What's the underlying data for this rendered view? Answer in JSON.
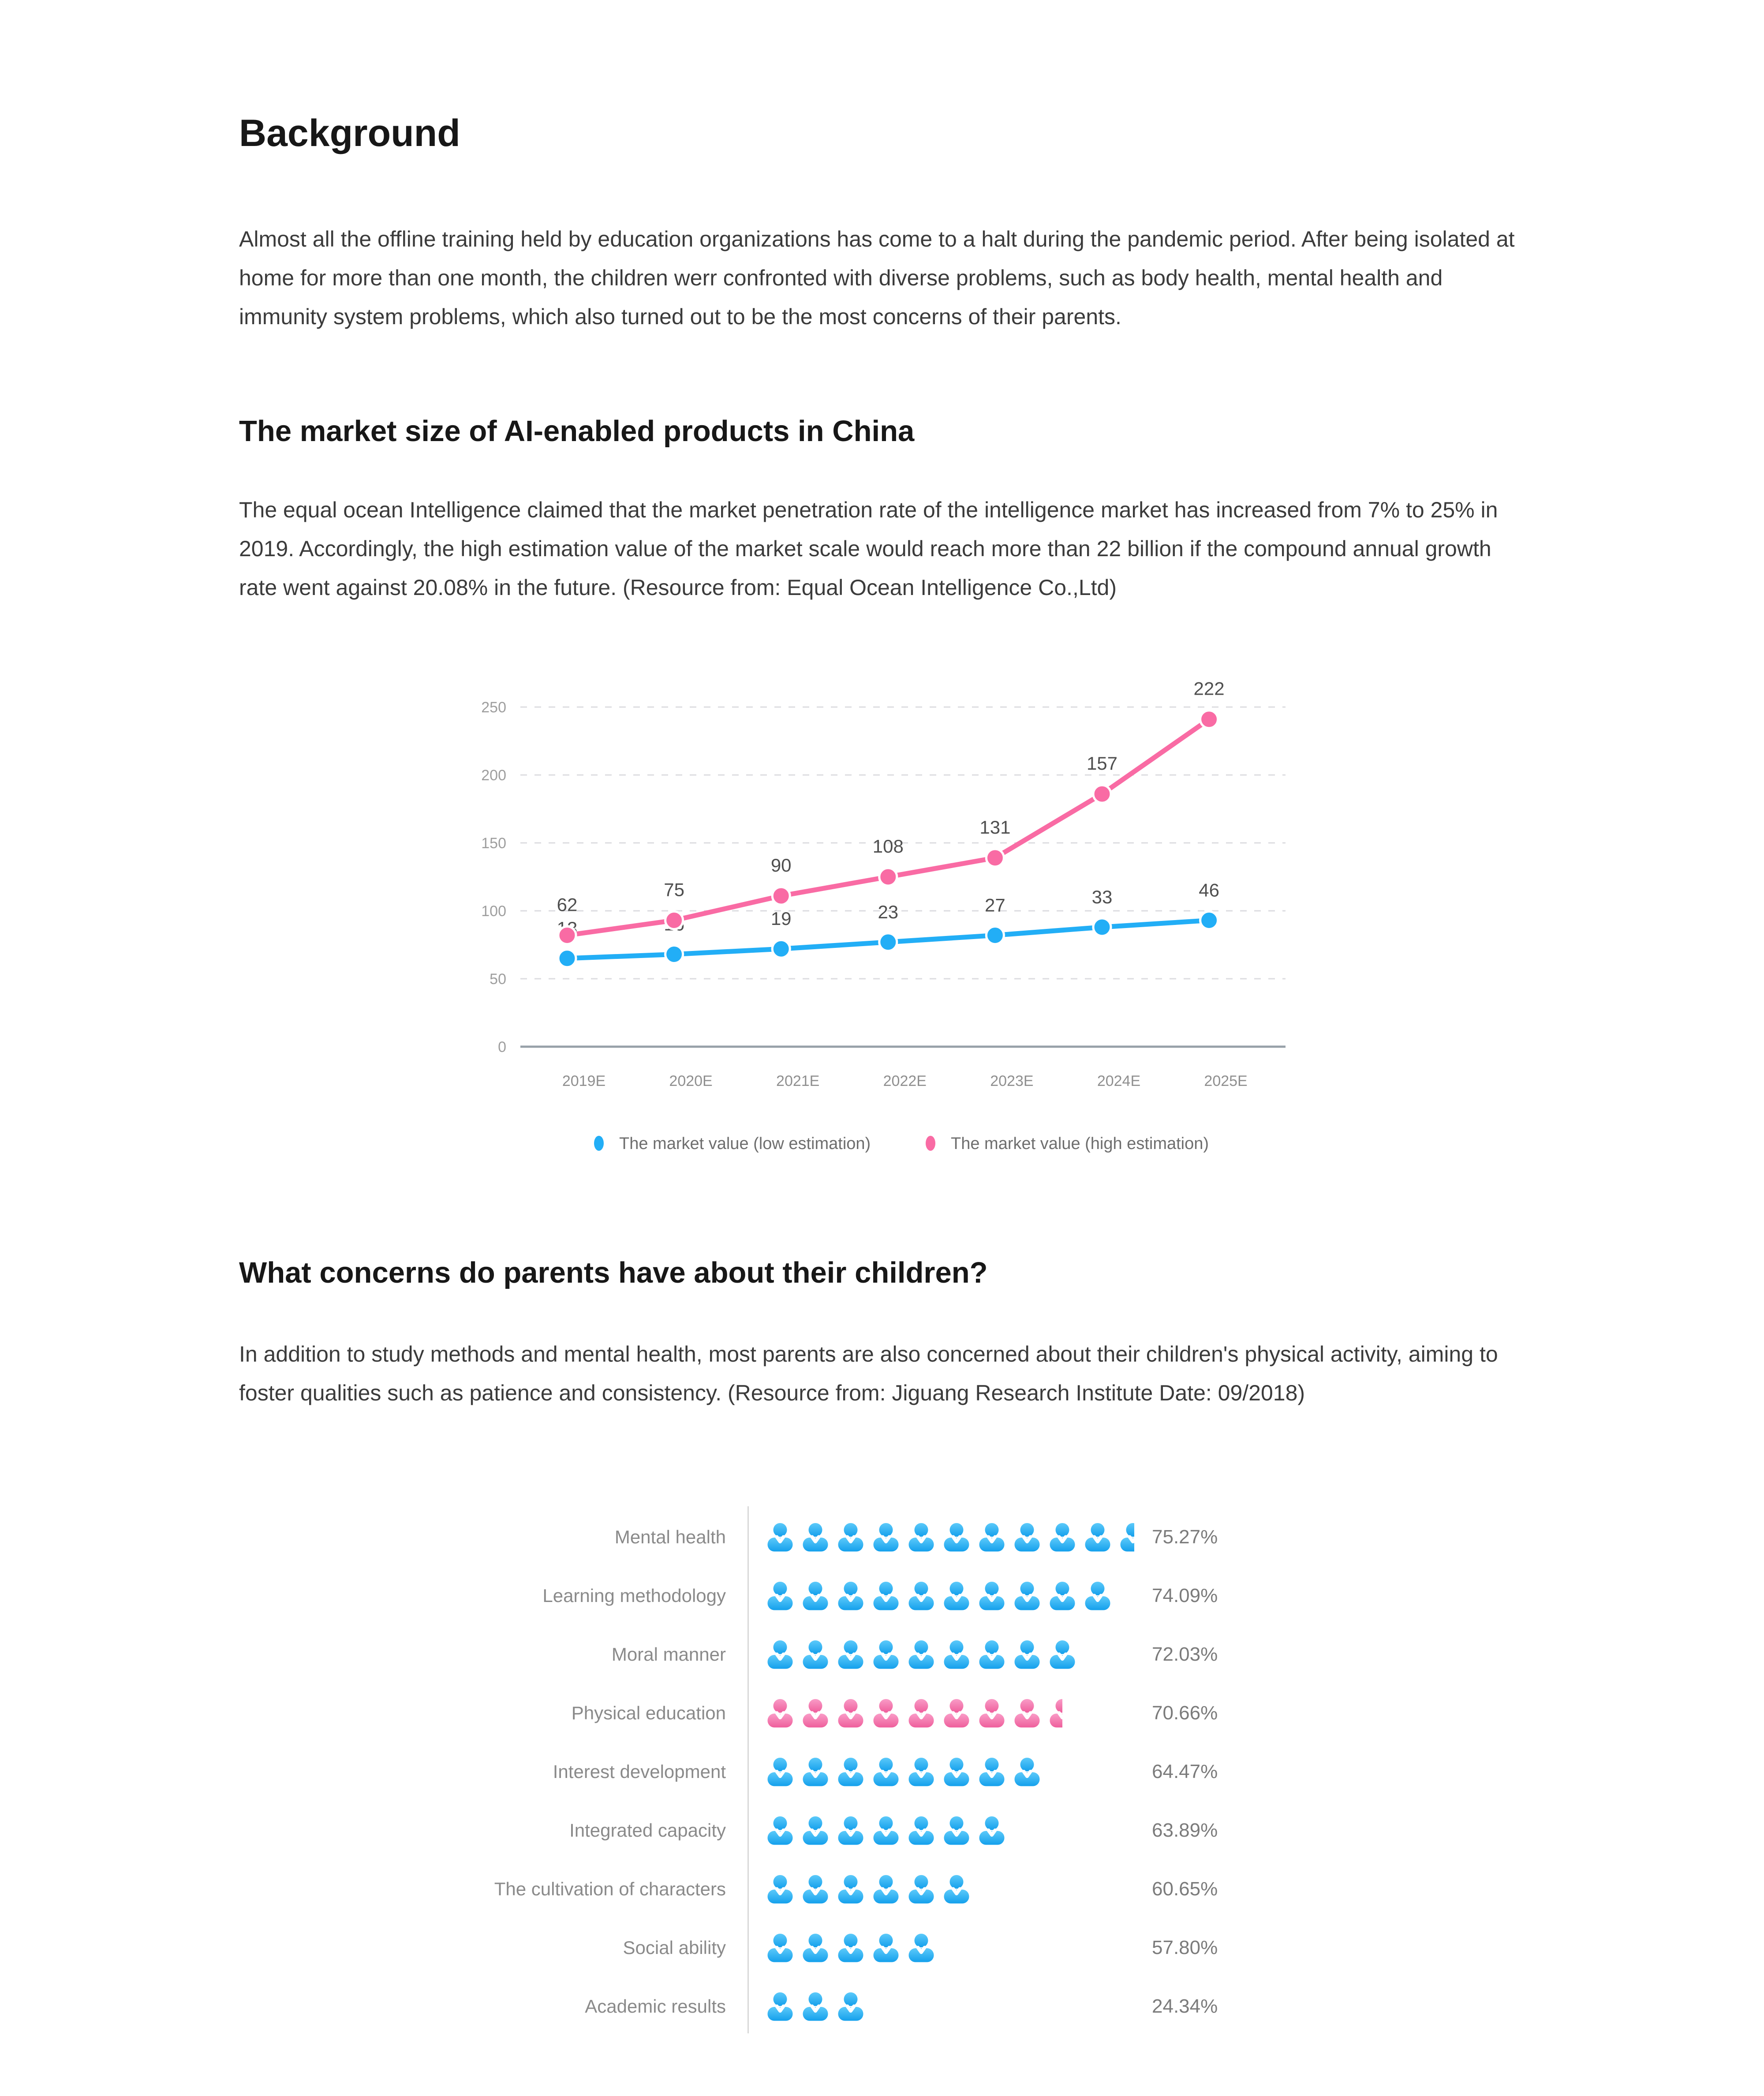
{
  "doc": {
    "title": "Background",
    "intro": "Almost all the offline training held by education organizations has come to a halt during the pandemic period. After being isolated at home for more than one month, the children werr confronted with diverse problems, such as body health, mental health and immunity system problems, which also turned out to be the most concerns of their parents.",
    "sections": [
      {
        "title": "The market size of AI-enabled products in China",
        "body": "The equal ocean Intelligence claimed that the market penetration rate of the intelligence market has increased from 7% to 25% in 2019. Accordingly, the high estimation value of the market scale would reach more than 22 billion if the compound annual growth rate went against 20.08% in the future. (Resource from: Equal Ocean Intelligence Co.,Ltd)"
      },
      {
        "title": "What concerns do parents have about their children?",
        "body": "In addition to study methods and mental health, most parents are also concerned about their children's physical activity, aiming to foster qualities such as patience and consistency.  (Resource from: Jiguang Research Institute   Date: 09/2018)"
      }
    ]
  },
  "chart_data": [
    {
      "type": "line",
      "title": "The market size of AI-enabled products in China",
      "categories": [
        "2019E",
        "2020E",
        "2021E",
        "2022E",
        "2023E",
        "2024E",
        "2025E"
      ],
      "series": [
        {
          "name": "The market value (low estimation)",
          "color": "#22AEF6",
          "values": [
            13,
            16,
            19,
            23,
            27,
            33,
            46
          ],
          "plotted_axis_y": [
            65,
            68,
            72,
            77,
            82,
            88,
            93
          ]
        },
        {
          "name": "The market value (high estimation)",
          "color": "#F96BA4",
          "values": [
            62,
            75,
            90,
            108,
            131,
            157,
            222
          ],
          "plotted_axis_y": [
            82,
            93,
            111,
            125,
            139,
            186,
            241
          ]
        }
      ],
      "ylim": [
        0,
        250
      ],
      "yticks": [
        0,
        50,
        100,
        150,
        200,
        250
      ],
      "grid": "horizontal-dashed",
      "grid_color": "#dcdce0",
      "axis_color": "#97a0a8",
      "tick_label_color": "#9e9e9e",
      "xtick_label_color": "#8f8f8f",
      "data_label_color": "#4f4f4f",
      "legend_position": "bottom",
      "legend_text_color": "#6e6e6e"
    },
    {
      "type": "pictogram-bar",
      "unit": "person-icon",
      "categories": [
        "Mental health",
        "Learning methodology",
        "Moral manner",
        "Physical education",
        "Interest development",
        "Integrated capacity",
        "The cultivation of characters",
        "Social ability",
        "Academic results"
      ],
      "values": [
        75.27,
        74.09,
        72.03,
        70.66,
        64.47,
        63.89,
        60.65,
        57.8,
        24.34
      ],
      "value_labels": [
        "75.27%",
        "74.09%",
        "72.03%",
        "70.66%",
        "64.47%",
        "63.89%",
        "60.65%",
        "57.80%",
        "24.34%"
      ],
      "icon_counts": [
        10.55,
        10,
        9,
        8.5,
        8,
        7,
        6,
        5,
        3
      ],
      "row_colors": [
        "blue",
        "blue",
        "blue",
        "pink",
        "blue",
        "blue",
        "blue",
        "blue",
        "blue"
      ],
      "colors": {
        "blue": "#22AEF6",
        "pink": "#F96BA4"
      }
    }
  ]
}
